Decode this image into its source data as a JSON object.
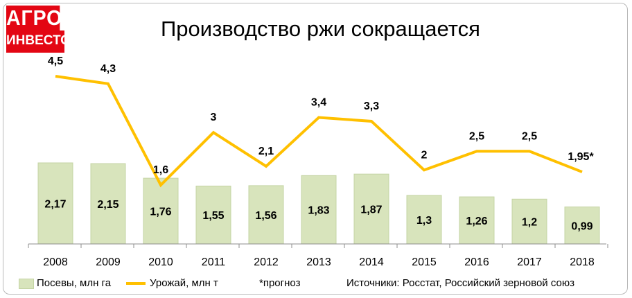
{
  "header": {
    "logo_top": "АГРО",
    "logo_bottom": "ИНВЕСТОР",
    "title": "Производство ржи сокращается"
  },
  "colors": {
    "bar_fill": "#d8e4bc",
    "bar_stroke": "#c4d4a4",
    "line": "#ffc000",
    "logo": "#e30613"
  },
  "chart_data": {
    "type": "bar",
    "categories": [
      "2008",
      "2009",
      "2010",
      "2011",
      "2012",
      "2013",
      "2014",
      "2015",
      "2016",
      "2017",
      "2018"
    ],
    "series": [
      {
        "name": "Посевы, млн га",
        "type": "bar",
        "values": [
          2.17,
          2.15,
          1.76,
          1.55,
          1.56,
          1.83,
          1.87,
          1.3,
          1.26,
          1.2,
          0.99
        ],
        "labels": [
          "2,17",
          "2,15",
          "1,76",
          "1,55",
          "1,56",
          "1,83",
          "1,87",
          "1,3",
          "1,26",
          "1,2",
          "0,99"
        ]
      },
      {
        "name": "Урожай, млн т",
        "type": "line",
        "values": [
          4.5,
          4.3,
          1.6,
          3,
          2.1,
          3.4,
          3.3,
          2,
          2.5,
          2.5,
          1.95
        ],
        "labels": [
          "4,5",
          "4,3",
          "1,6",
          "3",
          "2,1",
          "3,4",
          "3,3",
          "2",
          "2,5",
          "2,5",
          "1,95*"
        ]
      }
    ],
    "bar_ylim": [
      0,
      5
    ],
    "line_ylim": [
      0,
      6
    ],
    "grid": false,
    "legend_position": "bottom"
  },
  "legend": {
    "bars": "Посевы, млн га",
    "line": "Урожай, млн т",
    "note": "*прогноз",
    "source": "Источники: Росстат, Российский зерновой союз"
  }
}
